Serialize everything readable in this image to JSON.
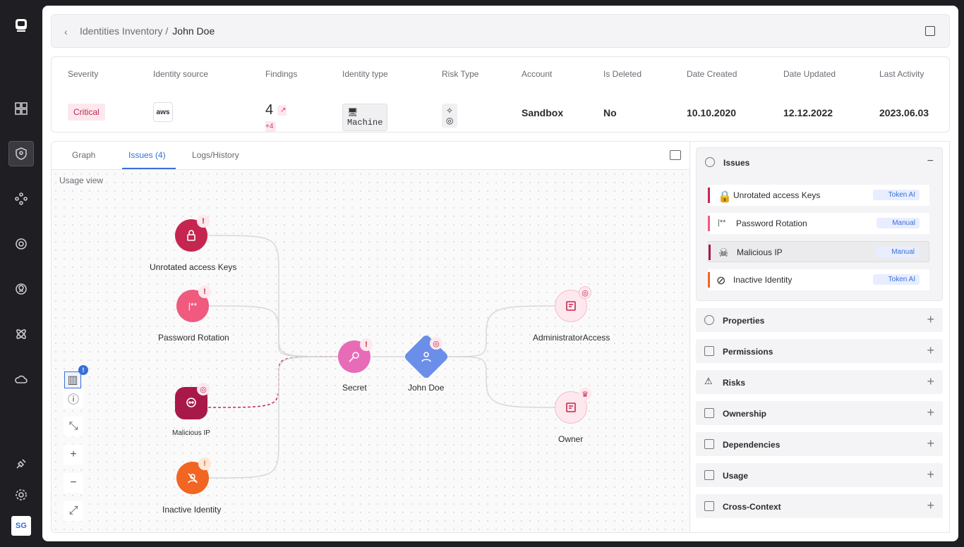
{
  "sidebar": {
    "avatar": "SG"
  },
  "header": {
    "breadcrumb_parent": "Identities Inventory /",
    "breadcrumb_current": "John Doe"
  },
  "summary": {
    "labels": [
      "Severity",
      "Identity source",
      "Findings",
      "Identity type",
      "Risk Type",
      "Account",
      "Is Deleted",
      "Date Created",
      "Date Updated",
      "Last Activity"
    ],
    "severity": "Critical",
    "source": "aws",
    "findings": "4",
    "findings_delta": "↗ +4",
    "identity_type": "Machine",
    "account": "Sandbox",
    "is_deleted": "No",
    "date_created": "10.10.2020",
    "date_updated": "12.12.2022",
    "last_activity": "2023.06.03"
  },
  "tabs": [
    "Graph",
    "Issues (4)",
    "Logs/History"
  ],
  "canvas": {
    "usage_label": "Usage view"
  },
  "nodes": [
    "Unrotated access Keys",
    "Password Rotation",
    "Malicious IP",
    "Inactive Identity",
    "Secret",
    "John Doe",
    "AdministratorAccess",
    "Owner"
  ],
  "issues": {
    "title": "Issues",
    "items": [
      {
        "label": "Unrotated access Keys",
        "tag": "Token AI",
        "color": "#c4264f"
      },
      {
        "label": "Password Rotation",
        "tag": "Manual",
        "color": "#f05a7e"
      },
      {
        "label": "Malicious IP",
        "tag": "Manual",
        "color": "#a8194a"
      },
      {
        "label": "Inactive Identity",
        "tag": "Token AI",
        "color": "#f26522"
      }
    ]
  },
  "sections": [
    "Properties",
    "Permissions",
    "Risks",
    "Ownership",
    "Dependencies",
    "Usage",
    "Cross-Context"
  ]
}
